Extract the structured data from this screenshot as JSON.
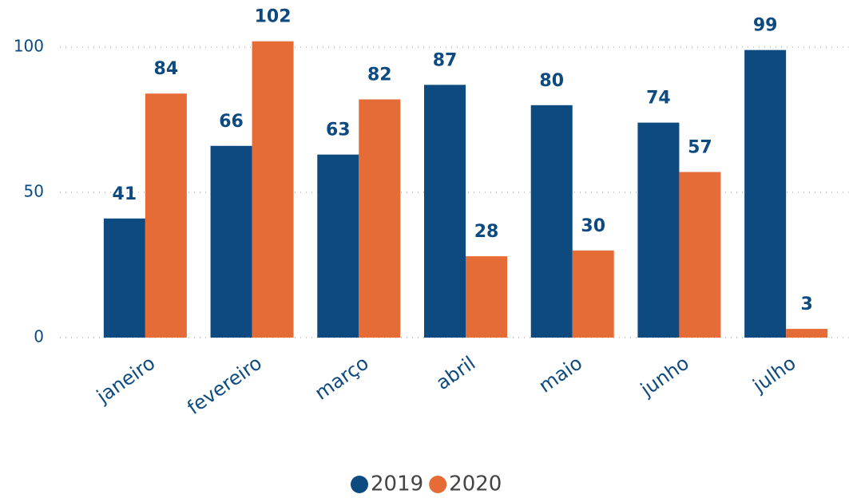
{
  "chart_data": {
    "type": "bar",
    "categories": [
      "janeiro",
      "fevereiro",
      "março",
      "abril",
      "maio",
      "junho",
      "julho"
    ],
    "series": [
      {
        "name": "2019",
        "color": "#0d4a80",
        "values": [
          41,
          66,
          63,
          87,
          80,
          74,
          99
        ]
      },
      {
        "name": "2020",
        "color": "#e66c37",
        "values": [
          84,
          102,
          82,
          28,
          30,
          57,
          3
        ]
      }
    ],
    "ylim": [
      0,
      100
    ],
    "yticks": [
      0,
      50,
      100
    ],
    "grid": true,
    "legend": "bottom"
  }
}
